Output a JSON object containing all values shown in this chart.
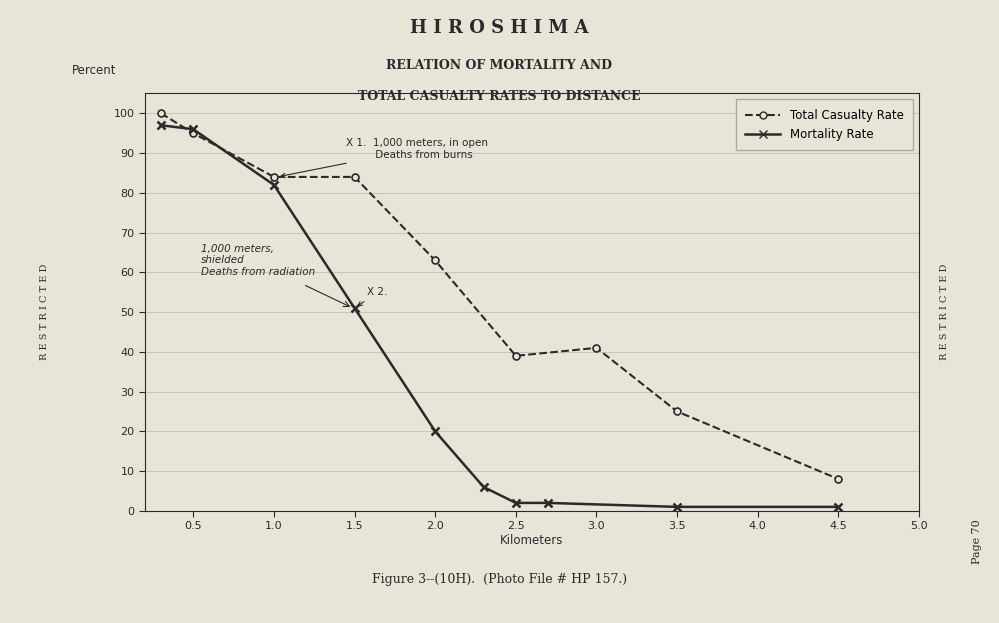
{
  "title": "H I R O S H I M A",
  "subtitle1": "RELATION OF MORTALITY AND",
  "subtitle2": "TOTAL CASUALTY RATES TO DISTANCE",
  "xlabel": "Kilometers",
  "ylabel": "Percent",
  "caption": "Figure 3--(10H).  (Photo File # HP 157.)",
  "background_color": "#e8e4d8",
  "xlim": [
    0.2,
    5.0
  ],
  "ylim": [
    0,
    105
  ],
  "xticks": [
    0.5,
    1.0,
    1.5,
    2.0,
    2.5,
    3.0,
    3.5,
    4.0,
    4.5,
    5.0
  ],
  "yticks": [
    0,
    10,
    20,
    30,
    40,
    50,
    60,
    70,
    80,
    90,
    100
  ],
  "total_casualty_x": [
    0.3,
    0.5,
    1.0,
    1.5,
    2.0,
    2.5,
    3.0,
    3.5,
    4.5
  ],
  "total_casualty_y": [
    100,
    95,
    84,
    84,
    63,
    39,
    41,
    25,
    8
  ],
  "mortality_x": [
    0.3,
    0.5,
    1.0,
    1.5,
    2.0,
    2.3,
    2.5,
    2.7,
    3.5,
    4.5
  ],
  "mortality_y": [
    97,
    96,
    82,
    51,
    20,
    6,
    2,
    2,
    1,
    1
  ],
  "restricted_text": "R E S T R I C T E D",
  "page_text": "Page 70",
  "line_color": "#2a2a2a",
  "legend_total_label": "Total Casualty Rate",
  "legend_mort_label": "Mortality Rate",
  "annot1_text": "X 1.  1,000 meters, in open\n         Deaths from burns",
  "annot2_text": "X 2.",
  "annot3_text": "1,000 meters,\nshielded\nDeaths from radiation"
}
